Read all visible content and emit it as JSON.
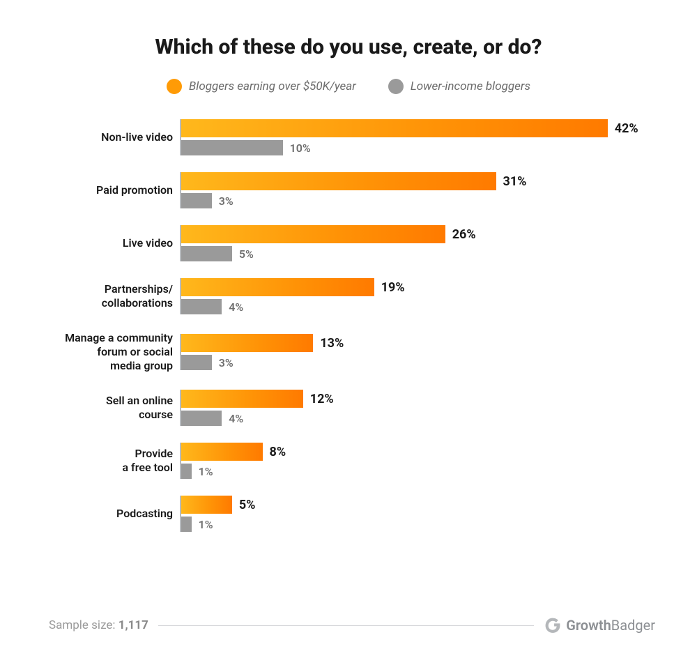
{
  "title": "Which of these do you use, create, or do?",
  "title_fontsize": 30,
  "legend": {
    "items": [
      {
        "label": "Bloggers earning over $50K/year",
        "color": "#ff9b06"
      },
      {
        "label": "Lower-income bloggers",
        "color": "#9a9a9a"
      }
    ],
    "fontsize": 17
  },
  "chart": {
    "type": "grouped-horizontal-bar",
    "x_max": 46,
    "axis_color": "#b9bcc0",
    "label_fontsize": 16,
    "value_fontsize": 18,
    "bar_height_primary": 26,
    "bar_height_secondary": 22,
    "series_colors": {
      "primary_gradient_start": "#ffb81c",
      "primary_gradient_mid": "#ff9206",
      "primary_gradient_end": "#ff7a00",
      "secondary": "#9a9a9a"
    },
    "categories": [
      {
        "label": "Non-live video",
        "primary": 42,
        "secondary": 10
      },
      {
        "label": "Paid promotion",
        "primary": 31,
        "secondary": 3
      },
      {
        "label": "Live video",
        "primary": 26,
        "secondary": 5
      },
      {
        "label": "Partnerships/\ncollaborations",
        "primary": 19,
        "secondary": 4
      },
      {
        "label": "Manage a community\nforum or social\nmedia group",
        "primary": 13,
        "secondary": 3
      },
      {
        "label": "Sell an online\ncourse",
        "primary": 12,
        "secondary": 4
      },
      {
        "label": "Provide\na free tool",
        "primary": 8,
        "secondary": 1
      },
      {
        "label": "Podcasting",
        "primary": 5,
        "secondary": 1
      }
    ]
  },
  "footer": {
    "sample_label": "Sample size:",
    "sample_value": "1,117",
    "brand_strong": "Growth",
    "brand_light": "Badger",
    "line_color": "#d5d7da",
    "text_color": "#9a9a9a"
  },
  "background_color": "#ffffff"
}
